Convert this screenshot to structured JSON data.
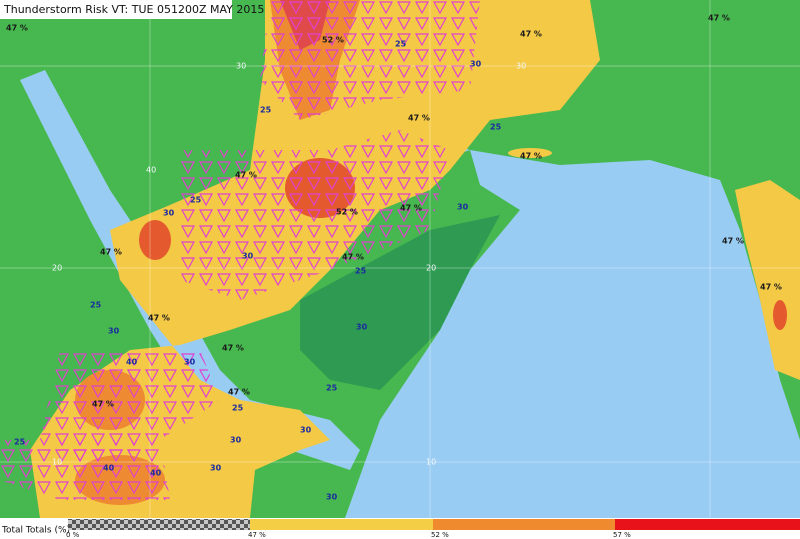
{
  "header": {
    "title": "Thunderstorm Risk VT: TUE 051200Z MAY 2015"
  },
  "legend": {
    "label": "Total Totals (%)",
    "ticks": [
      "0 %",
      "47 %",
      "52 %",
      "57 %"
    ]
  },
  "map_labels": {
    "risk": [
      "47 %",
      "52 %",
      "47 %",
      "47 %",
      "47 %",
      "47 %",
      "52 %",
      "47 %",
      "47 %",
      "47 %",
      "47 %",
      "47 %",
      "47 %",
      "47 %",
      "47 %",
      "47 %",
      "47 %"
    ],
    "contours": [
      "25",
      "30",
      "25",
      "25",
      "30",
      "25",
      "30",
      "25",
      "30",
      "30",
      "30",
      "40",
      "30",
      "25",
      "25",
      "30",
      "40",
      "30",
      "25",
      "30",
      "25",
      "40",
      "30"
    ],
    "grid": [
      "30",
      "20",
      "10",
      "40",
      "30",
      "20",
      "10"
    ]
  }
}
